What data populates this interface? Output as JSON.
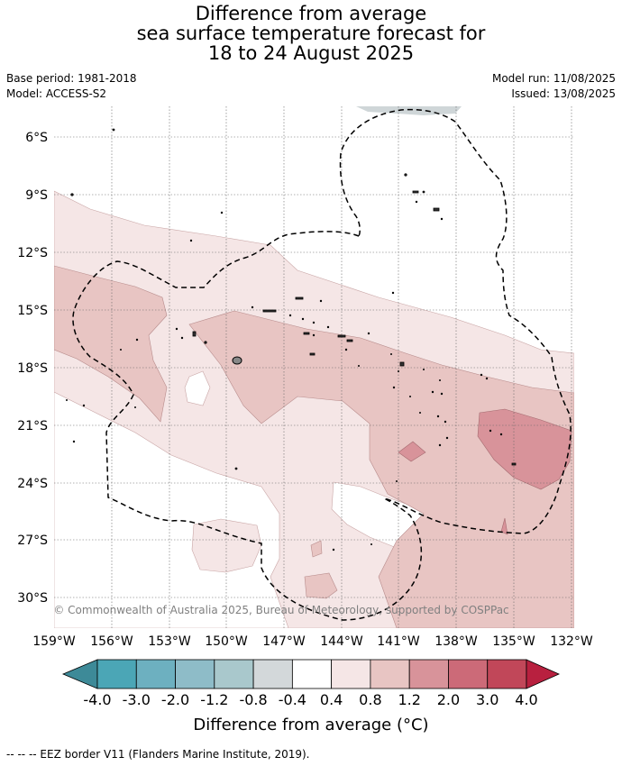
{
  "title_lines": [
    "Difference from average",
    "sea surface temperature forecast for",
    "18 to 24 August 2025"
  ],
  "meta": {
    "base_period": "Base period: 1981-2018",
    "model": "Model: ACCESS-S2",
    "model_run": "Model run: 11/08/2025",
    "issued": "Issued: 13/08/2025"
  },
  "lat_labels": [
    "6°S",
    "9°S",
    "12°S",
    "15°S",
    "18°S",
    "21°S",
    "24°S",
    "27°S",
    "30°S"
  ],
  "lon_labels": [
    "159°W",
    "156°W",
    "153°W",
    "150°W",
    "147°W",
    "144°W",
    "141°W",
    "138°W",
    "135°W",
    "132°W"
  ],
  "copyright": "© Commonwealth of Australia 2025, Bureau of Meteorology, supported by COSPPac",
  "colorbar": {
    "ticks": [
      "-4.0",
      "-3.0",
      "-2.0",
      "-1.2",
      "-0.8",
      "-0.4",
      "0.4",
      "0.8",
      "1.2",
      "2.0",
      "3.0",
      "4.0"
    ],
    "colors": [
      "#3d8a98",
      "#4ba6b6",
      "#6db0c0",
      "#8ebcc8",
      "#a9c8cc",
      "#d3d8da",
      "#ffffff",
      "#f5e6e6",
      "#e8c5c3",
      "#d8939a",
      "#cc6a78",
      "#c14759",
      "#b8203f"
    ],
    "label": "Difference from average (°C)"
  },
  "footer": "-- -- -- EEZ border V11 (Flanders Marine Institute, 2019)."
}
